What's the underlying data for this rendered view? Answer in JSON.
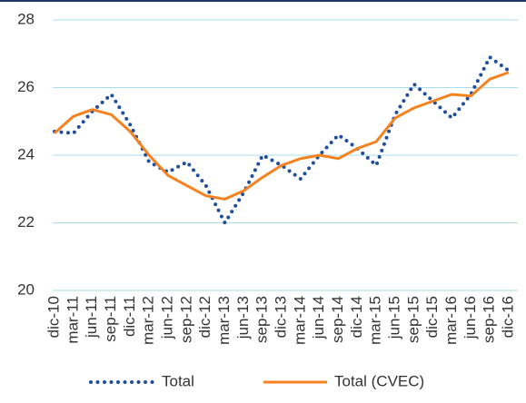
{
  "chart_data": {
    "type": "line",
    "categories": [
      "dic-10",
      "mar-11",
      "jun-11",
      "sep-11",
      "dic-11",
      "mar-12",
      "jun-12",
      "sep-12",
      "dic-12",
      "mar-13",
      "jun-13",
      "sep-13",
      "dic-13",
      "mar-14",
      "jun-14",
      "sep-14",
      "dic-14",
      "mar-15",
      "jun-15",
      "sep-15",
      "dic-15",
      "mar-16",
      "jun-16",
      "sep-16",
      "dic-16"
    ],
    "series": [
      {
        "name": "Total",
        "color": "#1f4e9a",
        "style": "dotted",
        "values": [
          24.7,
          24.65,
          25.3,
          25.8,
          24.9,
          23.8,
          23.5,
          23.8,
          23.1,
          22.0,
          22.9,
          24.0,
          23.7,
          23.3,
          24.0,
          24.6,
          24.2,
          23.7,
          25.2,
          26.1,
          25.6,
          25.1,
          25.8,
          26.9,
          26.5
        ]
      },
      {
        "name": "Total (CVEC)",
        "color": "#f58220",
        "style": "solid",
        "values": [
          24.65,
          25.15,
          25.35,
          25.2,
          24.7,
          24.0,
          23.4,
          23.1,
          22.8,
          22.7,
          22.95,
          23.35,
          23.7,
          23.9,
          24.0,
          23.9,
          24.2,
          24.4,
          25.1,
          25.4,
          25.6,
          25.8,
          25.75,
          26.25,
          26.45
        ]
      }
    ],
    "ylim": [
      20,
      28
    ],
    "yticks": [
      20,
      22,
      24,
      26,
      28
    ],
    "grid": true,
    "legend": "bottom"
  }
}
